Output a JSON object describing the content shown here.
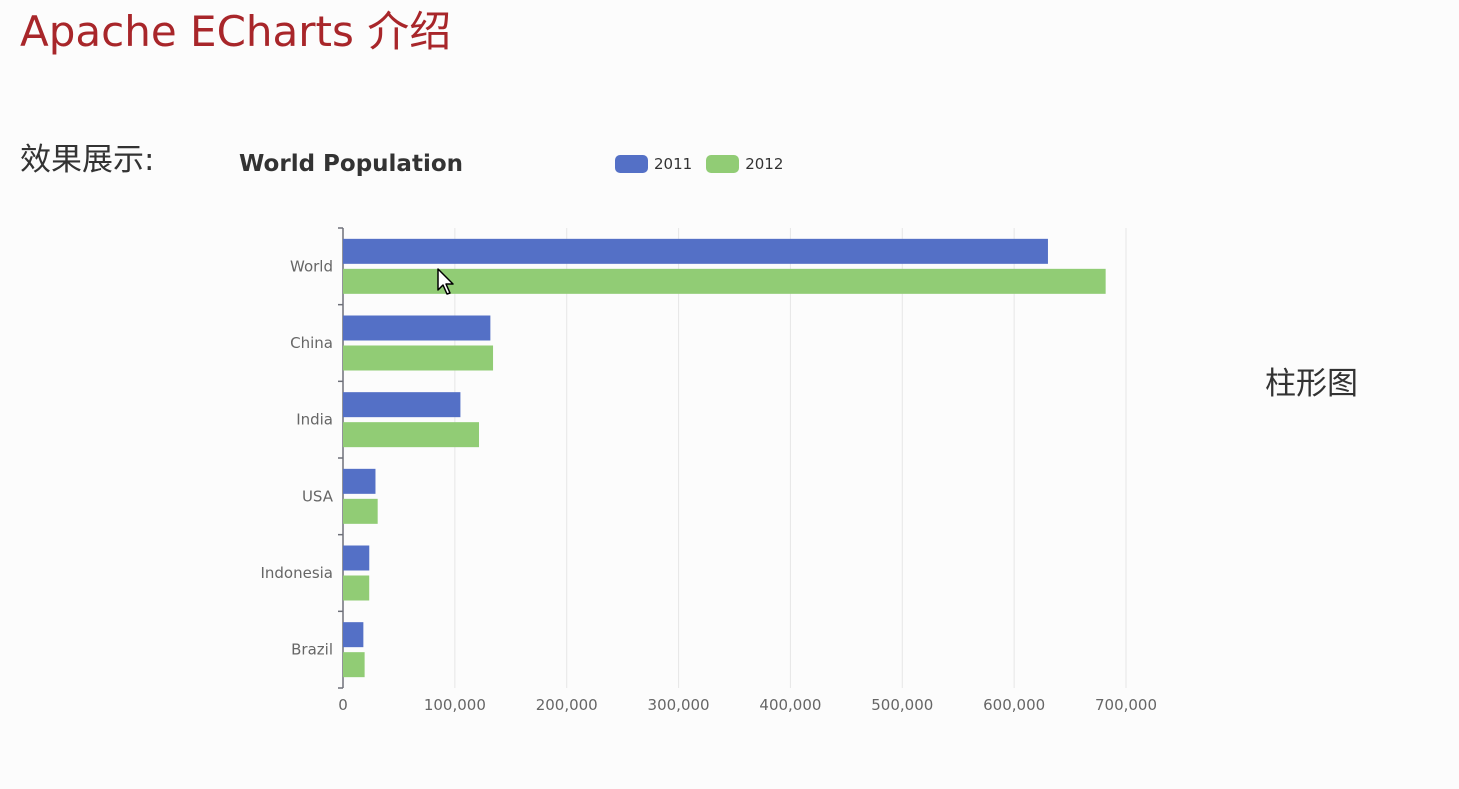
{
  "page": {
    "title": "Apache ECharts 介绍",
    "demo_label": "效果展示:",
    "side_label": "柱形图"
  },
  "colors": {
    "title_red": "#a8262a",
    "series_2011": "#5470c6",
    "series_2012": "#91cc75"
  },
  "chart_data": {
    "type": "bar",
    "orientation": "horizontal",
    "title": "World Population",
    "categories": [
      "World",
      "China",
      "India",
      "USA",
      "Indonesia",
      "Brazil"
    ],
    "series": [
      {
        "name": "2011",
        "values": [
          630230,
          131744,
          104970,
          29034,
          23489,
          18203
        ],
        "color": "#5470c6"
      },
      {
        "name": "2012",
        "values": [
          681807,
          134141,
          121594,
          31000,
          23438,
          19325
        ],
        "color": "#91cc75"
      }
    ],
    "xlim": [
      0,
      700000
    ],
    "x_ticks": [
      "0",
      "100,000",
      "200,000",
      "300,000",
      "400,000",
      "500,000",
      "600,000",
      "700,000"
    ],
    "grid": true,
    "legend_position": "top"
  }
}
